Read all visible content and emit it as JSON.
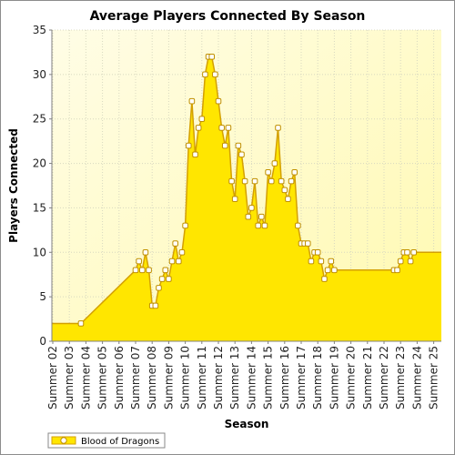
{
  "chart_data": {
    "type": "area",
    "title": "Average Players Connected By Season",
    "xlabel": "Season",
    "ylabel": "Players Connected",
    "ylim": [
      0,
      35
    ],
    "yticks": [
      0,
      5,
      10,
      15,
      20,
      25,
      30,
      35
    ],
    "grid": true,
    "legend_position": "bottom-left",
    "categories": [
      "Summer 02",
      "Summer 03",
      "Summer 04",
      "Summer 05",
      "Summer 06",
      "Summer 07",
      "Summer 08",
      "Summer 09",
      "Summer 10",
      "Summer 11",
      "Summer 12",
      "Summer 13",
      "Summer 14",
      "Summer 15",
      "Summer 16",
      "Summer 17",
      "Summer 18",
      "Summer 19",
      "Summer 20",
      "Summer 21",
      "Summer 22",
      "Summer 23",
      "Summer 24",
      "Summer 25"
    ],
    "series": [
      {
        "name": "Blood of Dragons",
        "fill_color": "#ffe600",
        "line_color": "#d4a000",
        "points": [
          {
            "x": 1.7,
            "y": 2
          },
          {
            "x": 5.0,
            "y": 8
          },
          {
            "x": 5.2,
            "y": 9
          },
          {
            "x": 5.4,
            "y": 8
          },
          {
            "x": 5.6,
            "y": 10
          },
          {
            "x": 5.8,
            "y": 8
          },
          {
            "x": 6.0,
            "y": 4
          },
          {
            "x": 6.2,
            "y": 4
          },
          {
            "x": 6.4,
            "y": 6
          },
          {
            "x": 6.6,
            "y": 7
          },
          {
            "x": 6.8,
            "y": 8
          },
          {
            "x": 7.0,
            "y": 7
          },
          {
            "x": 7.2,
            "y": 9
          },
          {
            "x": 7.4,
            "y": 11
          },
          {
            "x": 7.6,
            "y": 9
          },
          {
            "x": 7.8,
            "y": 10
          },
          {
            "x": 8.0,
            "y": 13
          },
          {
            "x": 8.2,
            "y": 22
          },
          {
            "x": 8.4,
            "y": 27
          },
          {
            "x": 8.6,
            "y": 21
          },
          {
            "x": 8.8,
            "y": 24
          },
          {
            "x": 9.0,
            "y": 25
          },
          {
            "x": 9.2,
            "y": 30
          },
          {
            "x": 9.4,
            "y": 32
          },
          {
            "x": 9.6,
            "y": 32
          },
          {
            "x": 9.8,
            "y": 30
          },
          {
            "x": 10.0,
            "y": 27
          },
          {
            "x": 10.2,
            "y": 24
          },
          {
            "x": 10.4,
            "y": 22
          },
          {
            "x": 10.6,
            "y": 24
          },
          {
            "x": 10.8,
            "y": 18
          },
          {
            "x": 11.0,
            "y": 16
          },
          {
            "x": 11.2,
            "y": 22
          },
          {
            "x": 11.4,
            "y": 21
          },
          {
            "x": 11.6,
            "y": 18
          },
          {
            "x": 11.8,
            "y": 14
          },
          {
            "x": 12.0,
            "y": 15
          },
          {
            "x": 12.2,
            "y": 18
          },
          {
            "x": 12.4,
            "y": 13
          },
          {
            "x": 12.6,
            "y": 14
          },
          {
            "x": 12.8,
            "y": 13
          },
          {
            "x": 13.0,
            "y": 19
          },
          {
            "x": 13.2,
            "y": 18
          },
          {
            "x": 13.4,
            "y": 20
          },
          {
            "x": 13.6,
            "y": 24
          },
          {
            "x": 13.8,
            "y": 18
          },
          {
            "x": 14.0,
            "y": 17
          },
          {
            "x": 14.2,
            "y": 16
          },
          {
            "x": 14.4,
            "y": 18
          },
          {
            "x": 14.6,
            "y": 19
          },
          {
            "x": 14.8,
            "y": 13
          },
          {
            "x": 15.0,
            "y": 11
          },
          {
            "x": 15.2,
            "y": 11
          },
          {
            "x": 15.4,
            "y": 11
          },
          {
            "x": 15.6,
            "y": 9
          },
          {
            "x": 15.8,
            "y": 10
          },
          {
            "x": 16.0,
            "y": 10
          },
          {
            "x": 16.2,
            "y": 9
          },
          {
            "x": 16.4,
            "y": 7
          },
          {
            "x": 16.6,
            "y": 8
          },
          {
            "x": 16.8,
            "y": 9
          },
          {
            "x": 17.0,
            "y": 8
          },
          {
            "x": 20.6,
            "y": 8
          },
          {
            "x": 20.8,
            "y": 8
          },
          {
            "x": 21.0,
            "y": 9
          },
          {
            "x": 21.2,
            "y": 10
          },
          {
            "x": 21.4,
            "y": 10
          },
          {
            "x": 21.6,
            "y": 9
          },
          {
            "x": 21.8,
            "y": 10
          }
        ]
      }
    ]
  }
}
